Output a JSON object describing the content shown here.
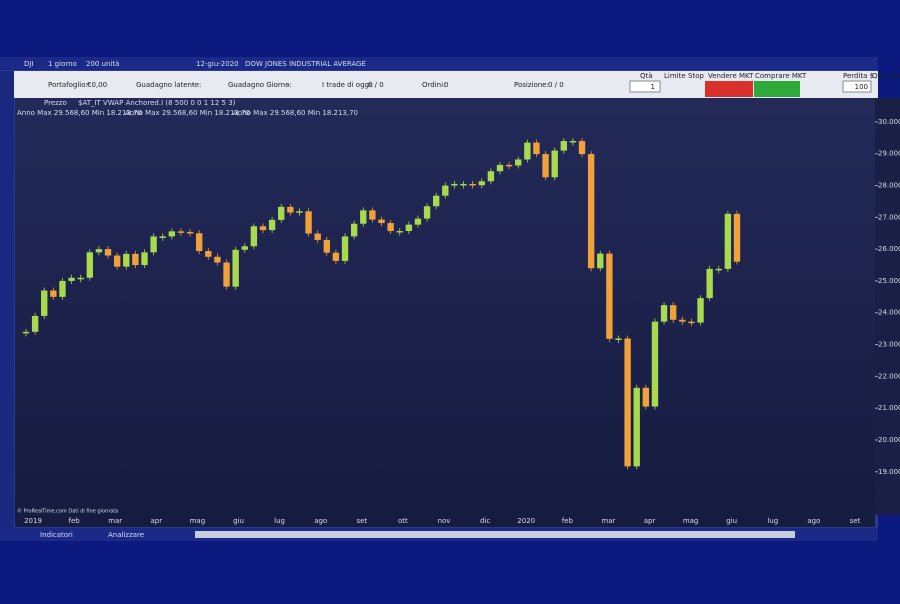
{
  "toolbar": {
    "symbol": "DJI",
    "period": "1 giorno",
    "units": "200 unità",
    "date": "12-giu-2020",
    "name": "DOW JONES INDUSTRIAL AVERAGE"
  },
  "account": {
    "portfolio_label": "Portafoglio:",
    "portfolio": "€0,00",
    "latent_label": "Guadagno latente:",
    "latent": "-",
    "day_label": "Guadagno Giorno:",
    "day": "-",
    "trades_label": "I trade di oggi:",
    "trades": "0 / 0",
    "orders_label": "Ordini:",
    "orders": "0",
    "position_label": "Posizione:",
    "position": "0 / 0"
  },
  "order": {
    "qty_label": "Qtà",
    "qty": "1",
    "limit": "Limite",
    "stop": "Stop",
    "sell": "Vendere MKT",
    "buy": "Comprare MKT",
    "loss_label": "Perdita $",
    "loss": "100",
    "auto": "Qtà auto"
  },
  "indicator": {
    "price": "Prezzo",
    "vwap": "$AT_IT VWAP Anchored.I (8 500 0 0 1 12 5 3)",
    "ranges": [
      "Anno Max 29.568,60 Min 18.213,70",
      "Anno Max 29.568,60 Min 18.213,70",
      "Anno Max 29.568,60 Min 18.213,70"
    ]
  },
  "credit": "© ProRealTime.com  Dati di fine giornata",
  "bottom": {
    "indicators": "Indicatori",
    "analyze": "Analizzare"
  },
  "chart_data": {
    "type": "candlestick",
    "xlabels": [
      "2019",
      "feb",
      "mar",
      "apr",
      "mag",
      "giu",
      "lug",
      "ago",
      "set",
      "ott",
      "nov",
      "dic",
      "2020",
      "feb",
      "mar",
      "apr",
      "mag",
      "giu",
      "lug",
      "ago",
      "set"
    ],
    "values": [
      23400,
      23900,
      24700,
      24500,
      25000,
      25100,
      25100,
      25900,
      26000,
      25800,
      25450,
      25850,
      25500,
      25900,
      26400,
      26400,
      26560,
      26540,
      26500,
      25940,
      25760,
      25580,
      24820,
      25980,
      26090,
      26720,
      26600,
      26920,
      27330,
      27150,
      27190,
      26490,
      26290,
      25890,
      25630,
      26400,
      26800,
      27220,
      26930,
      26820,
      26570,
      26570,
      26770,
      26960,
      27350,
      27680,
      28000,
      28050,
      28050,
      28010,
      28135,
      28450,
      28650,
      28630,
      28820,
      29350,
      28990,
      28260,
      29100,
      29400,
      29400,
      28990,
      25400,
      25860,
      23180,
      23190,
      19170,
      21640,
      21050,
      23720,
      24240,
      23780,
      23720,
      23690,
      24460,
      25380,
      25380,
      27110,
      25605
    ],
    "up_color": "#a9d94c",
    "down_color": "#f0a13a",
    "ylim": [
      17640,
      30690
    ],
    "yticks": [
      {
        "value": 30000,
        "label": "30.000"
      },
      {
        "value": 29000,
        "label": "29.000"
      },
      {
        "value": 28000,
        "label": "28.000"
      },
      {
        "value": 27000,
        "label": "27.000"
      },
      {
        "value": 26000,
        "label": "26.000"
      },
      {
        "value": 25000,
        "label": "25.000"
      },
      {
        "value": 24000,
        "label": "24.000"
      },
      {
        "value": 23000,
        "label": "23.000"
      },
      {
        "value": 22000,
        "label": "22.000"
      },
      {
        "value": 21000,
        "label": "21.000"
      },
      {
        "value": 20000,
        "label": "20.000"
      },
      {
        "value": 19000,
        "label": "19.000"
      }
    ]
  }
}
